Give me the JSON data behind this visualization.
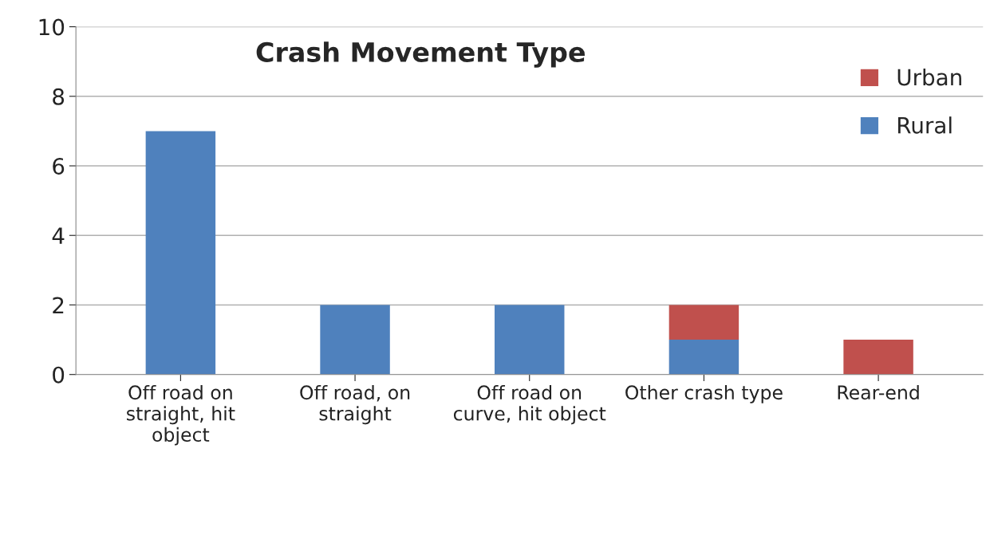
{
  "chart_data": {
    "type": "bar",
    "title": "Crash Movement Type",
    "stacked": true,
    "categories": [
      "Off road on straight, hit object",
      "Off road, on straight",
      "Off road on curve, hit object",
      "Other crash type",
      "Rear-end"
    ],
    "series": [
      {
        "name": "Rural",
        "color": "#4f81bd",
        "values": [
          7,
          2,
          2,
          1,
          0
        ]
      },
      {
        "name": "Urban",
        "color": "#c0504d",
        "values": [
          0,
          0,
          0,
          1,
          1
        ]
      }
    ],
    "ylim": [
      0,
      10
    ],
    "yticks": [
      0,
      2,
      4,
      6,
      8,
      10
    ],
    "grid": "y",
    "legend": "right"
  }
}
